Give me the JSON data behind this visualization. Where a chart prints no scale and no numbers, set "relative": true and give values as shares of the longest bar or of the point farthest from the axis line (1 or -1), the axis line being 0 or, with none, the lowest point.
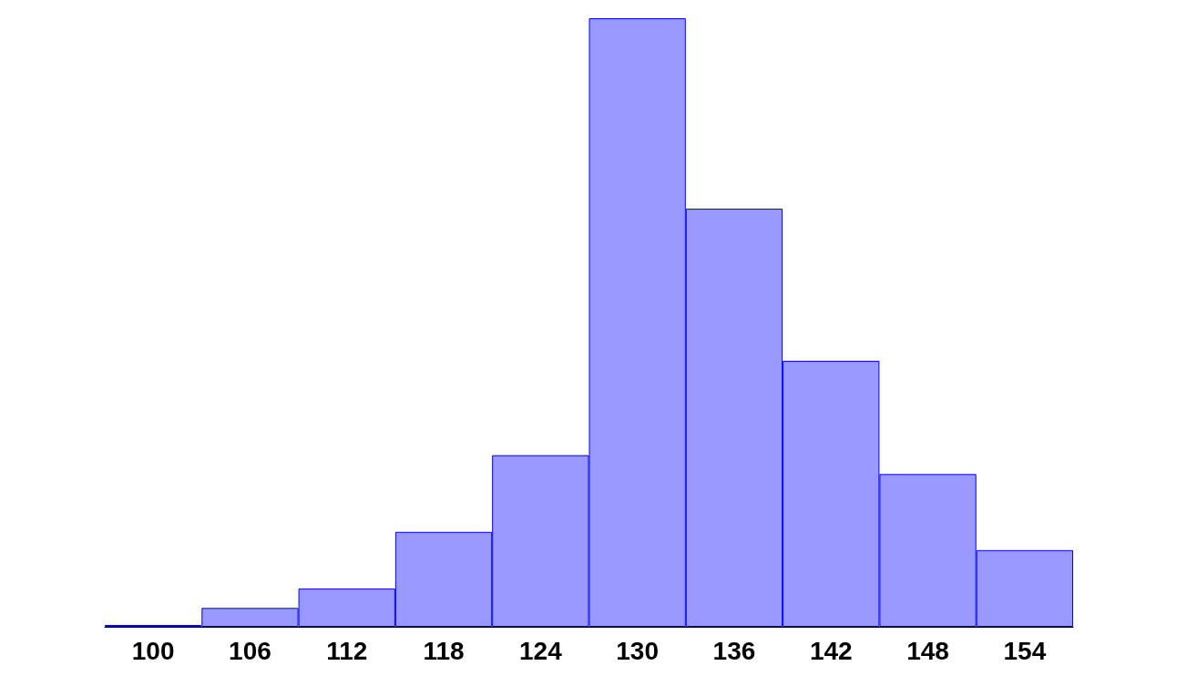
{
  "chart_data": {
    "type": "bar",
    "relative": true,
    "color": "#9999ff",
    "categories": [
      "100",
      "106",
      "112",
      "118",
      "124",
      "130",
      "136",
      "142",
      "148",
      "154"
    ],
    "values": [
      0.003,
      0.031,
      0.063,
      0.156,
      0.282,
      1,
      0.687,
      0.437,
      0.251,
      0.126
    ]
  }
}
